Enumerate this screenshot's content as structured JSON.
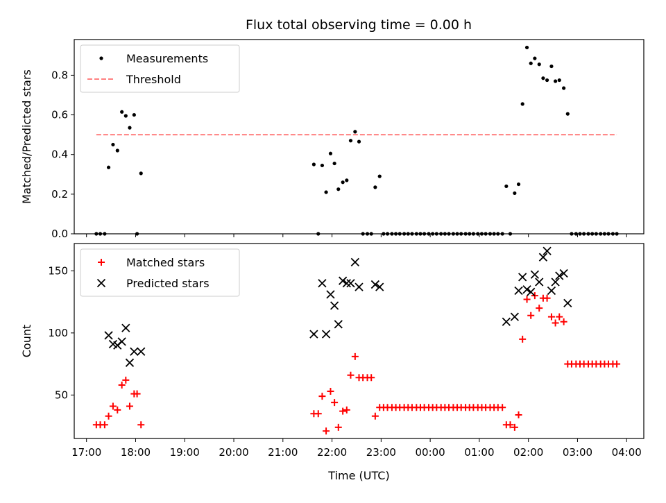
{
  "chart_data": [
    {
      "type": "scatter",
      "title": "Flux total observing time = 0.00 h",
      "xlabel": "",
      "ylabel": "Matched/Predicted stars",
      "xlim": [
        16.75,
        28.35
      ],
      "ylim": [
        0,
        0.98
      ],
      "yticks": [
        0,
        0.2,
        0.4,
        0.6,
        0.8
      ],
      "ytick_labels": [
        "0.0",
        "0.2",
        "0.4",
        "0.6",
        "0.8"
      ],
      "legend_position": "upper-left",
      "series": [
        {
          "name": "Measurements",
          "marker": "dot",
          "color": "#000000",
          "x": [
            17.2,
            17.28,
            17.37,
            17.45,
            17.54,
            17.63,
            17.72,
            17.8,
            17.88,
            17.97,
            18.03,
            18.11,
            21.63,
            21.72,
            21.8,
            21.88,
            21.97,
            22.05,
            22.13,
            22.22,
            22.3,
            22.38,
            22.47,
            22.55,
            22.63,
            22.72,
            22.8,
            22.88,
            22.97,
            23.05,
            23.13,
            23.22,
            23.3,
            23.38,
            23.47,
            23.55,
            23.63,
            23.72,
            23.8,
            23.88,
            23.97,
            24.05,
            24.13,
            24.22,
            24.3,
            24.38,
            24.47,
            24.55,
            24.63,
            24.72,
            24.8,
            24.88,
            24.97,
            25.05,
            25.13,
            25.22,
            25.3,
            25.38,
            25.47,
            25.55,
            25.63,
            25.72,
            25.8,
            25.88,
            25.97,
            26.05,
            26.13,
            26.22,
            26.3,
            26.38,
            26.47,
            26.55,
            26.63,
            26.72,
            26.8,
            26.88,
            26.97,
            27.05,
            27.13,
            27.22,
            27.3,
            27.38,
            27.47,
            27.55,
            27.63,
            27.72,
            27.8
          ],
          "y": [
            0,
            0,
            0,
            0.335,
            0.45,
            0.42,
            0.615,
            0.595,
            0.535,
            0.6,
            0,
            0.305,
            0.35,
            0,
            0.345,
            0.21,
            0.405,
            0.355,
            0.225,
            0.26,
            0.27,
            0.47,
            0.515,
            0.465,
            0,
            0,
            0,
            0.235,
            0.29,
            0,
            0,
            0,
            0,
            0,
            0,
            0,
            0,
            0,
            0,
            0,
            0,
            0,
            0,
            0,
            0,
            0,
            0,
            0,
            0,
            0,
            0,
            0,
            0,
            0,
            0,
            0,
            0,
            0,
            0,
            0.24,
            0,
            0.205,
            0.25,
            0.655,
            0.94,
            0.86,
            0.885,
            0.855,
            0.785,
            0.775,
            0.845,
            0.77,
            0.775,
            0.735,
            0.605,
            0,
            0,
            0,
            0,
            0,
            0,
            0,
            0,
            0,
            0,
            0,
            0
          ]
        },
        {
          "name": "Threshold",
          "marker": "dashed-line",
          "color": "#ff8080",
          "x": [
            17.2,
            27.8
          ],
          "y": [
            0.5,
            0.5
          ]
        }
      ]
    },
    {
      "type": "scatter",
      "title": "",
      "xlabel": "Time (UTC)",
      "ylabel": "Count",
      "xlim": [
        16.75,
        28.35
      ],
      "ylim": [
        15,
        172
      ],
      "yticks": [
        50,
        100,
        150
      ],
      "ytick_labels": [
        "50",
        "100",
        "150"
      ],
      "xticks": [
        17,
        18,
        19,
        20,
        21,
        22,
        23,
        24,
        25,
        26,
        27,
        28
      ],
      "xtick_labels": [
        "17:00",
        "18:00",
        "19:00",
        "20:00",
        "21:00",
        "22:00",
        "23:00",
        "00:00",
        "01:00",
        "02:00",
        "03:00",
        "04:00"
      ],
      "legend_position": "upper-left",
      "series": [
        {
          "name": "Matched stars",
          "marker": "plus",
          "color": "#ff0000",
          "x": [
            17.2,
            17.28,
            17.37,
            17.45,
            17.54,
            17.63,
            17.72,
            17.8,
            17.88,
            17.97,
            18.03,
            18.11,
            21.63,
            21.72,
            21.8,
            21.88,
            21.97,
            22.05,
            22.13,
            22.22,
            22.3,
            22.38,
            22.47,
            22.55,
            22.63,
            22.72,
            22.8,
            22.88,
            22.97,
            23.05,
            23.13,
            23.22,
            23.3,
            23.38,
            23.47,
            23.55,
            23.63,
            23.72,
            23.8,
            23.88,
            23.97,
            24.05,
            24.13,
            24.22,
            24.3,
            24.38,
            24.47,
            24.55,
            24.63,
            24.72,
            24.8,
            24.88,
            24.97,
            25.05,
            25.13,
            25.22,
            25.3,
            25.38,
            25.47,
            25.55,
            25.63,
            25.72,
            25.8,
            25.88,
            25.97,
            26.05,
            26.13,
            26.22,
            26.3,
            26.38,
            26.47,
            26.55,
            26.63,
            26.72,
            26.8,
            26.88,
            26.97,
            27.05,
            27.13,
            27.22,
            27.3,
            27.38,
            27.47,
            27.55,
            27.63,
            27.72,
            27.8
          ],
          "y": [
            26,
            26,
            26,
            33,
            41,
            38,
            58,
            62,
            41,
            51,
            51,
            26,
            35,
            35,
            49,
            21,
            53,
            44,
            24,
            37,
            38,
            66,
            81,
            64,
            64,
            64,
            64,
            33,
            40,
            40,
            40,
            40,
            40,
            40,
            40,
            40,
            40,
            40,
            40,
            40,
            40,
            40,
            40,
            40,
            40,
            40,
            40,
            40,
            40,
            40,
            40,
            40,
            40,
            40,
            40,
            40,
            40,
            40,
            40,
            26,
            26,
            24,
            34,
            95,
            127,
            114,
            130,
            120,
            128,
            128,
            113,
            108,
            113,
            109,
            75,
            75,
            75,
            75,
            75,
            75,
            75,
            75,
            75,
            75,
            75,
            75,
            75
          ]
        },
        {
          "name": "Predicted stars",
          "marker": "x",
          "color": "#000000",
          "x": [
            17.45,
            17.54,
            17.63,
            17.72,
            17.8,
            17.88,
            17.97,
            18.11,
            21.63,
            21.8,
            21.88,
            21.97,
            22.05,
            22.13,
            22.22,
            22.3,
            22.38,
            22.47,
            22.55,
            22.88,
            22.97,
            25.55,
            25.72,
            25.8,
            25.88,
            25.97,
            26.05,
            26.13,
            26.22,
            26.3,
            26.38,
            26.47,
            26.55,
            26.63,
            26.72,
            26.8
          ],
          "y": [
            98,
            91,
            90,
            93,
            104,
            76,
            85,
            85,
            99,
            140,
            99,
            131,
            122,
            107,
            142,
            140,
            140,
            157,
            137,
            139,
            137,
            109,
            113,
            134,
            145,
            135,
            133,
            147,
            141,
            161,
            166,
            134,
            141,
            146,
            148,
            124
          ]
        }
      ]
    }
  ]
}
